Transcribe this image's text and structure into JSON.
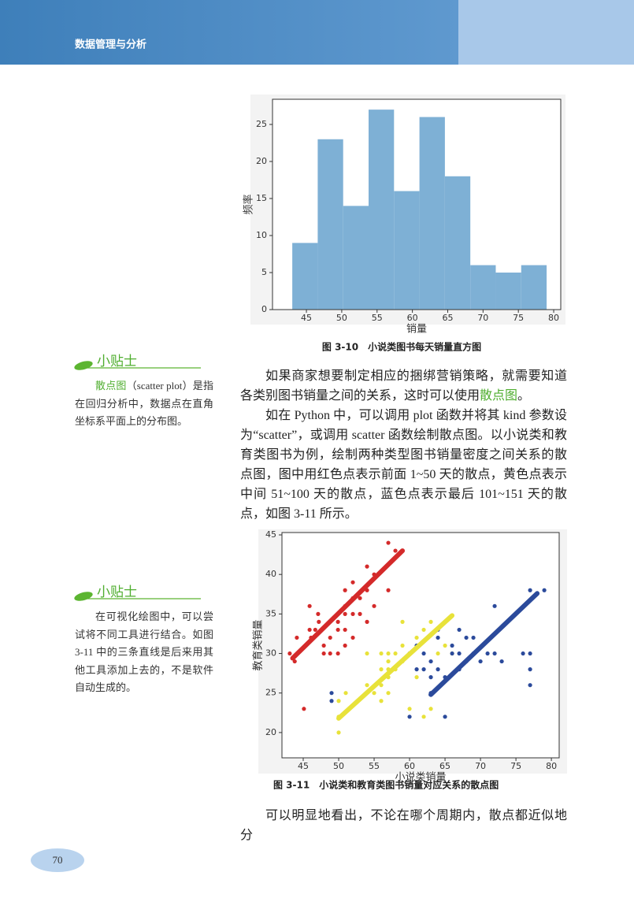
{
  "header": {
    "title": "数据管理与分析"
  },
  "page_number": "70",
  "chart_data": [
    {
      "type": "histogram",
      "bins": [
        43,
        46.6,
        50.2,
        53.8,
        57.4,
        61,
        64.6,
        68.2,
        71.8,
        75.4,
        79
      ],
      "values": [
        9,
        23,
        14,
        27,
        16,
        26,
        18,
        6,
        5,
        6
      ],
      "color": "#7eb0d5",
      "xlim": [
        40.2,
        81
      ],
      "ylim": [
        0,
        28.4
      ],
      "xticks": [
        45,
        50,
        55,
        60,
        65,
        70,
        75,
        80
      ],
      "yticks": [
        0,
        5,
        10,
        15,
        20,
        25
      ],
      "xlabel": "销量",
      "ylabel": "频率"
    },
    {
      "type": "scatter",
      "xlim": [
        42,
        81.1
      ],
      "ylim": [
        16.8,
        45.3
      ],
      "xticks": [
        45,
        50,
        55,
        60,
        65,
        70,
        75,
        80
      ],
      "yticks": [
        20,
        25,
        30,
        35,
        40,
        45
      ],
      "xlabel": "小说类销量",
      "ylabel": "教育类销量",
      "series": [
        {
          "color": "#d42a2a",
          "x": [
            43.1,
            43.8,
            44.1,
            45.1,
            45.9,
            45.9,
            46.1,
            46.7,
            47.1,
            47.2,
            47.9,
            47.9,
            48.8,
            48.8,
            49.9,
            49.9,
            49.9,
            50.9,
            50.9,
            50.9,
            50.9,
            50.9,
            52,
            52,
            52,
            52,
            53,
            53,
            54,
            54,
            54,
            55,
            57,
            58,
            57,
            55
          ],
          "y": [
            30,
            29,
            32,
            23,
            33,
            36,
            32,
            33,
            35,
            34,
            30,
            31,
            30,
            32,
            30,
            34,
            33,
            35,
            38,
            36,
            33,
            31,
            39,
            37,
            35,
            32,
            35,
            37,
            34,
            38,
            41,
            40,
            44,
            43,
            38,
            36
          ]
        },
        {
          "color": "#e8e23a",
          "x": [
            50,
            50,
            50,
            51,
            54,
            54,
            55,
            56,
            56,
            56,
            56,
            57,
            57,
            57,
            57,
            58,
            58,
            59,
            59,
            60,
            60,
            61,
            61,
            62,
            62,
            63,
            63,
            64,
            65,
            66,
            59,
            57
          ],
          "y": [
            20,
            22,
            24,
            25,
            30,
            26,
            25,
            30,
            28,
            26,
            24,
            30,
            29,
            27,
            25,
            30,
            28,
            29,
            31,
            30,
            23,
            32,
            27,
            33,
            22,
            34,
            23,
            30,
            31,
            30,
            34,
            28
          ]
        },
        {
          "color": "#2b4a9b",
          "x": [
            49,
            49,
            60,
            60,
            61,
            61,
            62,
            62,
            63,
            63,
            63,
            64,
            64,
            64,
            65,
            65,
            66,
            66,
            67,
            67,
            68,
            68,
            69,
            69,
            70,
            71,
            72,
            72,
            73,
            76,
            77,
            77,
            77,
            77,
            79,
            67
          ],
          "y": [
            25,
            24,
            22,
            30,
            31,
            28,
            30,
            28,
            29,
            27,
            25,
            28,
            32,
            33,
            27,
            22,
            30,
            31,
            33,
            30,
            32,
            29,
            32,
            30,
            29,
            30,
            36,
            30,
            29,
            30,
            38,
            30,
            28,
            26,
            38,
            28
          ]
        }
      ],
      "lines": [
        {
          "color": "#d42a2a",
          "x": [
            43.5,
            59
          ],
          "y": [
            29.4,
            43
          ]
        },
        {
          "color": "#e8e23a",
          "x": [
            50,
            66
          ],
          "y": [
            21.8,
            34.8
          ]
        },
        {
          "color": "#2b4a9b",
          "x": [
            63,
            78
          ],
          "y": [
            24.8,
            37.6
          ]
        }
      ]
    }
  ],
  "captions": [
    "图 3-10　小说类图书每天销量直方图",
    "图 3-11　小说类和教育类图书销量对应关系的散点图"
  ],
  "paragraphs": [
    [
      "如果商家想要制定相应的捆绑营销策略，就需要知道各类别图书销量之间的关系，这时可以使用",
      "散点图",
      "。"
    ],
    [
      "如在 Python 中，可以调用 plot 函数并将其 kind 参数设为“scatter”，或调用 scatter 函数绘制散点图。以小说类和教育类图书为例，绘制两种类型图书销量密度之间关系的散点图，图中用红色点表示前面 1~50 天的散点，黄色点表示中间 51~100 天的散点，蓝色点表示最后 101~151 天的散点，如图 3-11 所示。"
    ],
    [
      "可以明显地看出，不论在哪个周期内，散点都近似地分"
    ]
  ],
  "tips": [
    {
      "title": "小贴士",
      "text": [
        "散点图",
        "（scatter plot）是指在回归分析中，数据点在直角坐标系平面上的分布图。"
      ]
    },
    {
      "title": "小贴士",
      "text": [
        "在可视化绘图中，可以尝试将不同工具进行结合。如图 3-11 中的三条直线是后来用其他工具添加上去的，不是软件自动生成的。"
      ]
    }
  ]
}
